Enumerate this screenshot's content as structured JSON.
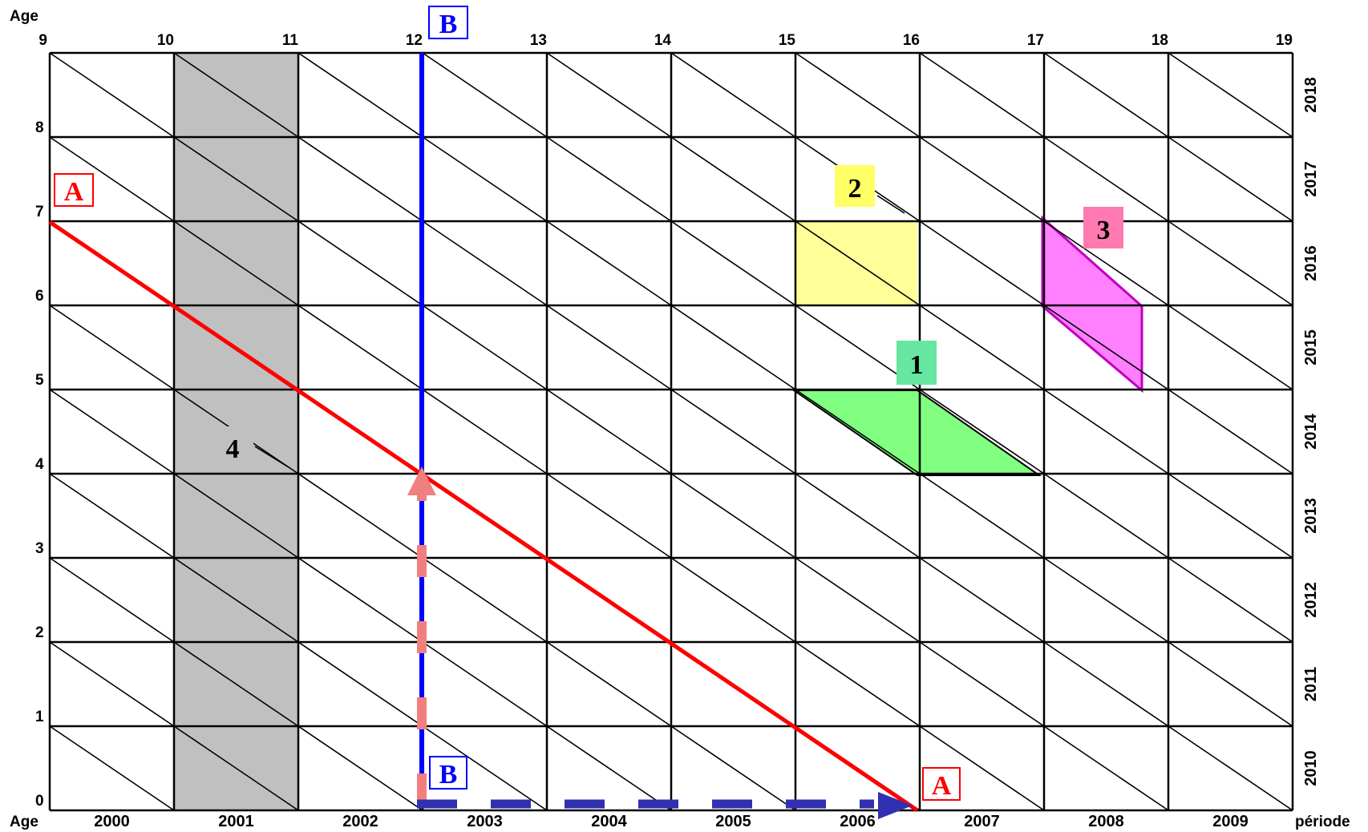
{
  "axis": {
    "age_label_top": "Age",
    "age_label_bottom": "Age",
    "periode_label": "période",
    "top_ticks": [
      "9",
      "10",
      "11",
      "12",
      "13",
      "14",
      "15",
      "16",
      "17",
      "18",
      "19"
    ],
    "left_ticks": [
      "0",
      "1",
      "2",
      "3",
      "4",
      "5",
      "6",
      "7",
      "8"
    ],
    "bottom_years": [
      "2000",
      "2001",
      "2002",
      "2003",
      "2004",
      "2005",
      "2006",
      "2007",
      "2008",
      "2009"
    ],
    "right_years": [
      "2010",
      "2011",
      "2012",
      "2013",
      "2014",
      "2015",
      "2016",
      "2017",
      "2018"
    ]
  },
  "callouts": {
    "a_top": "A",
    "a_bottom": "A",
    "b_top": "B",
    "b_bottom": "B",
    "one": "1",
    "two": "2",
    "three": "3",
    "four": "4"
  },
  "colors": {
    "grid": "#000000",
    "shaded_column": "#c0c0c0",
    "line_a": "#ff0000",
    "line_b": "#0000ff",
    "arrow_up": "#f08080",
    "arrow_right": "#3030b0",
    "region_1": "#80ff80",
    "region_2": "#ffff99",
    "region_3": "#ff80ff",
    "box_1": "#66e6a0",
    "box_2": "#ffff66",
    "box_3": "#ff7ab0",
    "box_4": "#c0c0c0"
  }
}
